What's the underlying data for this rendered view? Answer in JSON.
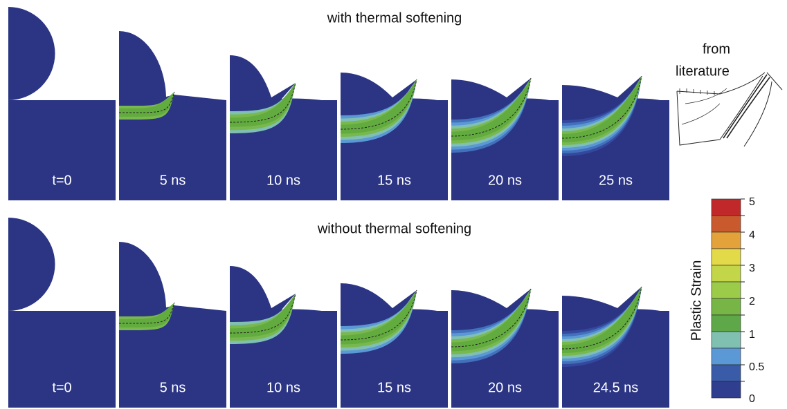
{
  "rows": [
    {
      "title": "with thermal softening",
      "panels": [
        "t=0",
        "5 ns",
        "10 ns",
        "15 ns",
        "20 ns",
        "25 ns"
      ]
    },
    {
      "title": "without thermal softening",
      "panels": [
        "t=0",
        "5 ns",
        "10 ns",
        "15 ns",
        "20 ns",
        "24.5 ns"
      ]
    }
  ],
  "literature": [
    "from",
    "literature"
  ],
  "colorbar": {
    "label": "Plastic Strain",
    "ticks": [
      "5",
      "4",
      "3",
      "2",
      "1",
      "0.5",
      "0"
    ]
  }
}
